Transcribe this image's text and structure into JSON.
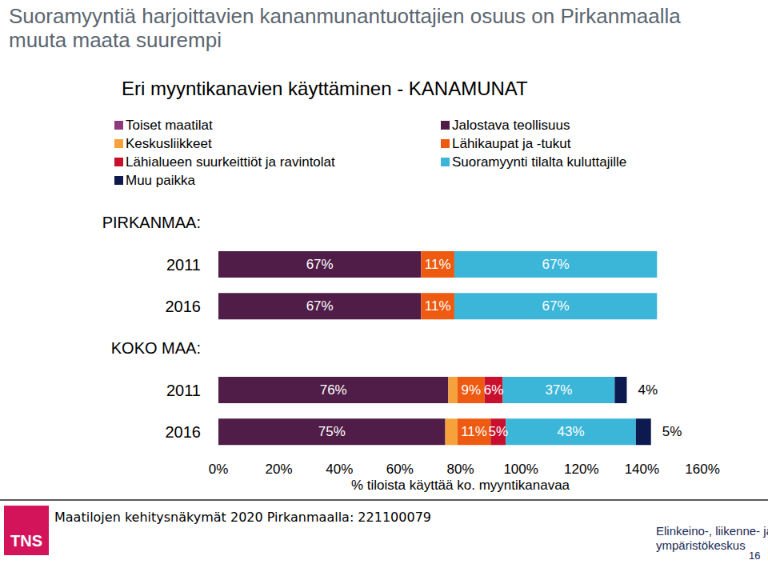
{
  "chart_data": {
    "type": "bar",
    "orientation": "horizontal",
    "stacked": true,
    "title": "Suoramyyntiä harjoittavien kananmunantuottajien osuus on Pirkanmaalla muuta maata suurempi",
    "subtitle": "Eri myyntikanavien käyttäminen - KANAMUNAT",
    "x_label": "% tiloista käyttää ko. myyntikanavaa",
    "categories": [
      "2011",
      "2016",
      "2011",
      "2016"
    ],
    "groups": [
      "PIRKANMAA:",
      "PIRKANMAA:",
      "KOKO MAA:",
      "KOKO MAA:"
    ],
    "xlim": [
      0,
      160
    ],
    "xticks": [
      {
        "value": 0,
        "label": "0%"
      },
      {
        "value": 20,
        "label": "20%"
      },
      {
        "value": 40,
        "label": "40%"
      },
      {
        "value": 60,
        "label": "60%"
      },
      {
        "value": 80,
        "label": "80%"
      },
      {
        "value": 100,
        "label": "100%"
      },
      {
        "value": 120,
        "label": "120%"
      },
      {
        "value": 140,
        "label": "140%"
      },
      {
        "value": 160,
        "label": "160%"
      }
    ],
    "grid": false,
    "legend": "top-left",
    "data_labels": true,
    "series": [
      {
        "name": "Toiset maatilat",
        "color": "#8b3a7a",
        "values": [
          0,
          0,
          0,
          0
        ],
        "value_labels": [
          null,
          null,
          null,
          null
        ]
      },
      {
        "name": "Jalostava teollisuus",
        "color": "#4f1d47",
        "values": [
          67,
          67,
          76,
          75
        ],
        "value_labels": [
          "67%",
          "67%",
          "76%",
          "75%"
        ]
      },
      {
        "name": "Keskusliikkeet",
        "color": "#f7a13a",
        "values": [
          0,
          0,
          3,
          4
        ],
        "value_labels": [
          null,
          null,
          null,
          null
        ]
      },
      {
        "name": "Lähikaupat ja -tukut",
        "color": "#ee5a0f",
        "values": [
          11,
          11,
          9,
          11
        ],
        "value_labels": [
          "11%",
          "11%",
          "9%",
          "11%"
        ]
      },
      {
        "name": "Lähialueen suurkeittiöt ja ravintolat",
        "color": "#c8102e",
        "values": [
          0,
          0,
          6,
          5
        ],
        "value_labels": [
          null,
          null,
          "6%",
          "5%"
        ]
      },
      {
        "name": "Suoramyynti tilalta kuluttajille",
        "color": "#3bb6d8",
        "values": [
          67,
          67,
          37,
          43
        ],
        "value_labels": [
          "67%",
          "67%",
          "37%",
          "43%"
        ]
      },
      {
        "name": "Muu paikka",
        "color": "#0d1a4f",
        "values": [
          0,
          0,
          4,
          5
        ],
        "value_labels": [
          null,
          null,
          "4%",
          "5%"
        ]
      }
    ]
  },
  "page": {
    "footer": "Maatilojen kehitysnäkymät 2020 Pirkanmaalla: 221100079",
    "logo_left": "TNS",
    "logo_right": [
      "Elinkeino-, liikenne- ja",
      "ympäristökeskus"
    ],
    "page_number": 16
  }
}
